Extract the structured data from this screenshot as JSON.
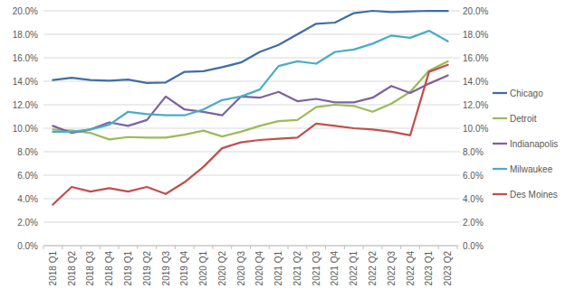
{
  "chart_data": {
    "type": "line",
    "categories": [
      "2018 Q1",
      "2018 Q2",
      "2018 Q3",
      "2018 Q4",
      "2019 Q1",
      "2019 Q2",
      "2019 Q3",
      "2019 Q4",
      "2020 Q1",
      "2020 Q2",
      "2020 Q3",
      "2020 Q4",
      "2021 Q1",
      "2021 Q2",
      "2021 Q3",
      "2021 Q4",
      "2022 Q1",
      "2022 Q2",
      "2022 Q3",
      "2022 Q4",
      "2023 Q1",
      "2023 Q2"
    ],
    "series": [
      {
        "name": "Chicago",
        "color": "#3f6ea6",
        "values": [
          14.1,
          14.3,
          14.1,
          14.05,
          14.15,
          13.85,
          13.9,
          14.8,
          14.85,
          15.2,
          15.6,
          16.5,
          17.1,
          18.0,
          18.9,
          19.0,
          19.8,
          20.0,
          19.9,
          19.95,
          20.0,
          20.0
        ]
      },
      {
        "name": "Detroit",
        "color": "#9bbb59",
        "values": [
          9.9,
          9.8,
          9.6,
          9.05,
          9.25,
          9.2,
          9.2,
          9.45,
          9.8,
          9.3,
          9.7,
          10.2,
          10.6,
          10.7,
          11.8,
          12.0,
          11.9,
          11.4,
          12.1,
          13.1,
          14.9,
          15.7
        ]
      },
      {
        "name": "Indianapolis",
        "color": "#7e62a1",
        "values": [
          10.2,
          9.6,
          9.9,
          10.5,
          10.2,
          10.7,
          12.7,
          11.6,
          11.4,
          11.1,
          12.7,
          12.6,
          13.1,
          12.3,
          12.5,
          12.2,
          12.2,
          12.6,
          13.6,
          13.0,
          13.8,
          14.5
        ]
      },
      {
        "name": "Milwaukee",
        "color": "#4bacc6",
        "values": [
          9.7,
          9.7,
          9.9,
          10.3,
          11.4,
          11.2,
          11.1,
          11.1,
          11.6,
          12.4,
          12.7,
          13.3,
          15.3,
          15.7,
          15.5,
          16.5,
          16.7,
          17.2,
          17.9,
          17.7,
          18.3,
          17.4
        ]
      },
      {
        "name": "Des Moines",
        "color": "#c0504d",
        "values": [
          3.5,
          5.0,
          4.6,
          4.9,
          4.6,
          5.0,
          4.4,
          5.4,
          6.7,
          8.3,
          8.8,
          9.0,
          9.1,
          9.2,
          10.4,
          10.2,
          10.0,
          9.9,
          9.7,
          9.4,
          14.8,
          15.4
        ]
      }
    ],
    "ylim": [
      0,
      20
    ],
    "yticks": [
      {
        "value": 0,
        "label": "0.0%"
      },
      {
        "value": 2,
        "label": "2.0%"
      },
      {
        "value": 4,
        "label": "4.0%"
      },
      {
        "value": 6,
        "label": "6.0%"
      },
      {
        "value": 8,
        "label": "8.0%"
      },
      {
        "value": 10,
        "label": "10.0%"
      },
      {
        "value": 12,
        "label": "12.0%"
      },
      {
        "value": 14,
        "label": "14.0%"
      },
      {
        "value": 16,
        "label": "16.0%"
      },
      {
        "value": 18,
        "label": "18.0%"
      },
      {
        "value": 20,
        "label": "20.0%"
      }
    ],
    "y2lim": [
      0,
      20
    ],
    "y2ticks": [
      {
        "value": 0,
        "label": "0.0%"
      },
      {
        "value": 2,
        "label": "2.0%"
      },
      {
        "value": 4,
        "label": "4.0%"
      },
      {
        "value": 6,
        "label": "6.0%"
      },
      {
        "value": 8,
        "label": "8.0%"
      },
      {
        "value": 10,
        "label": "10.0%"
      },
      {
        "value": 12,
        "label": "12.0%"
      },
      {
        "value": 14,
        "label": "14.0%"
      },
      {
        "value": 16,
        "label": "16.0%"
      },
      {
        "value": 18,
        "label": "18.0%"
      },
      {
        "value": 20,
        "label": "20.0%"
      }
    ],
    "grid": true,
    "legend": "right"
  }
}
